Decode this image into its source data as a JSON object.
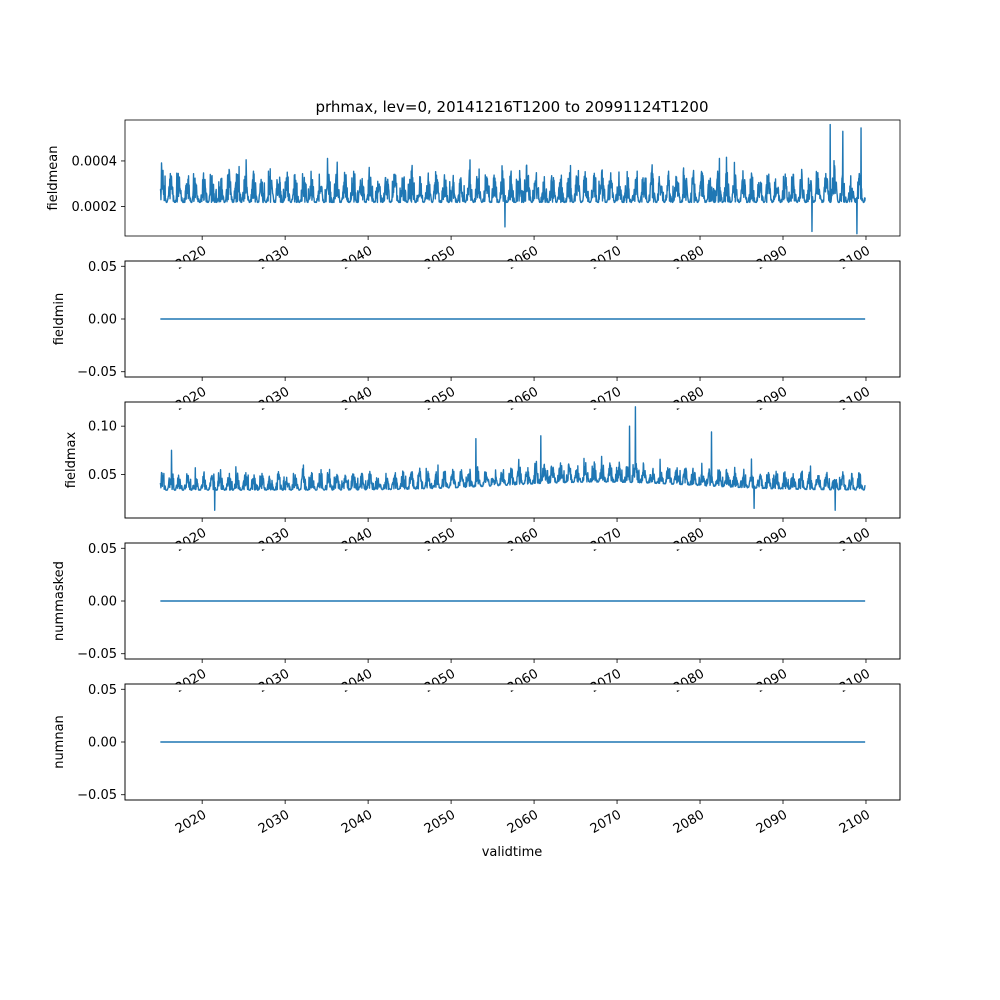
{
  "figure": {
    "title": "prhmax, lev=0, 20141216T1200 to 20991124T1200",
    "xlabel": "validtime"
  },
  "colors": {
    "series": "#1f77b4",
    "axis": "#000000",
    "background": "#ffffff"
  },
  "chart_data": [
    {
      "type": "line",
      "ylabel": "fieldmean",
      "x_range": [
        2014.96,
        2099.9
      ],
      "xlim": [
        2010.7,
        2104.1
      ],
      "ylim": [
        7e-05,
        0.00058
      ],
      "yticks": [
        0.0002,
        0.0004
      ],
      "ytick_labels": [
        "0.0002",
        "0.0004"
      ],
      "xticks": [
        2020,
        2030,
        2040,
        2050,
        2060,
        2070,
        2080,
        2090,
        2100
      ],
      "xtick_labels": [
        "2020",
        "2030",
        "2040",
        "2050",
        "2060",
        "2070",
        "2080",
        "2090",
        "2100"
      ],
      "pattern": "noisy",
      "envelope": {
        "low": 0.00015,
        "high": 0.00042
      },
      "extremes": [
        {
          "x": 2095.7,
          "y": 0.00056
        },
        {
          "x": 2099.4,
          "y": 0.000545
        },
        {
          "x": 2097.2,
          "y": 0.00053
        },
        {
          "x": 2098.9,
          "y": 8e-05
        },
        {
          "x": 2093.5,
          "y": 9e-05
        },
        {
          "x": 2056.5,
          "y": 0.00011
        }
      ]
    },
    {
      "type": "line",
      "ylabel": "fieldmin",
      "x_range": [
        2014.96,
        2099.9
      ],
      "xlim": [
        2010.7,
        2104.1
      ],
      "ylim": [
        -0.055,
        0.055
      ],
      "yticks": [
        -0.05,
        0.0,
        0.05
      ],
      "ytick_labels": [
        "−0.05",
        "0.00",
        "0.05"
      ],
      "xticks": [
        2020,
        2030,
        2040,
        2050,
        2060,
        2070,
        2080,
        2090,
        2100
      ],
      "xtick_labels": [
        "2020",
        "2030",
        "2040",
        "2050",
        "2060",
        "2070",
        "2080",
        "2090",
        "2100"
      ],
      "pattern": "constant",
      "value": 0.0
    },
    {
      "type": "line",
      "ylabel": "fieldmax",
      "x_range": [
        2014.96,
        2099.9
      ],
      "xlim": [
        2010.7,
        2104.1
      ],
      "ylim": [
        0.005,
        0.125
      ],
      "yticks": [
        0.05,
        0.1
      ],
      "ytick_labels": [
        "0.05",
        "0.10"
      ],
      "xticks": [
        2020,
        2030,
        2040,
        2050,
        2060,
        2070,
        2080,
        2090,
        2100
      ],
      "xtick_labels": [
        "2020",
        "2030",
        "2040",
        "2050",
        "2060",
        "2070",
        "2080",
        "2090",
        "2100"
      ],
      "pattern": "noisy",
      "envelope": {
        "low": 0.025,
        "high": 0.06,
        "bump_center": 2068,
        "bump_width": 16,
        "bump_amount": 0.012
      },
      "extremes": [
        {
          "x": 2072.2,
          "y": 0.12
        },
        {
          "x": 2071.5,
          "y": 0.1
        },
        {
          "x": 2060.8,
          "y": 0.09
        },
        {
          "x": 2053.0,
          "y": 0.087
        },
        {
          "x": 2081.4,
          "y": 0.094
        },
        {
          "x": 2016.3,
          "y": 0.075
        },
        {
          "x": 2096.3,
          "y": 0.013
        },
        {
          "x": 2021.5,
          "y": 0.013
        },
        {
          "x": 2086.5,
          "y": 0.015
        }
      ]
    },
    {
      "type": "line",
      "ylabel": "nummasked",
      "x_range": [
        2014.96,
        2099.9
      ],
      "xlim": [
        2010.7,
        2104.1
      ],
      "ylim": [
        -0.055,
        0.055
      ],
      "yticks": [
        -0.05,
        0.0,
        0.05
      ],
      "ytick_labels": [
        "−0.05",
        "0.00",
        "0.05"
      ],
      "xticks": [
        2020,
        2030,
        2040,
        2050,
        2060,
        2070,
        2080,
        2090,
        2100
      ],
      "xtick_labels": [
        "2020",
        "2030",
        "2040",
        "2050",
        "2060",
        "2070",
        "2080",
        "2090",
        "2100"
      ],
      "pattern": "constant",
      "value": 0.0
    },
    {
      "type": "line",
      "ylabel": "numnan",
      "x_range": [
        2014.96,
        2099.9
      ],
      "xlim": [
        2010.7,
        2104.1
      ],
      "ylim": [
        -0.055,
        0.055
      ],
      "yticks": [
        -0.05,
        0.0,
        0.05
      ],
      "ytick_labels": [
        "−0.05",
        "0.00",
        "0.05"
      ],
      "xticks": [
        2020,
        2030,
        2040,
        2050,
        2060,
        2070,
        2080,
        2090,
        2100
      ],
      "xtick_labels": [
        "2020",
        "2030",
        "2040",
        "2050",
        "2060",
        "2070",
        "2080",
        "2090",
        "2100"
      ],
      "pattern": "constant",
      "value": 0.0
    }
  ]
}
